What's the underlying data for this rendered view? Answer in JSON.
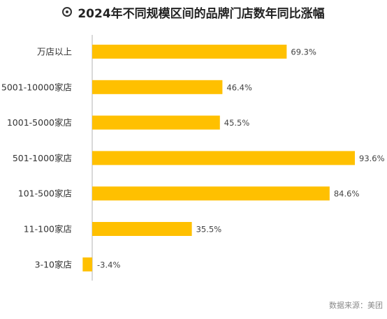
{
  "title": "2024年不同规模区间的品牌门店数年同比涨幅",
  "source": "数据来源：美团",
  "colors": {
    "bar": "#FFC000",
    "axis": "#d9d9d9",
    "label": "#333333",
    "value": "#444444"
  },
  "chart_data": {
    "type": "bar",
    "orientation": "horizontal",
    "title": "2024年不同规模区间的品牌门店数年同比涨幅",
    "categories": [
      "万店以上",
      "5001-10000家店",
      "1001-5000家店",
      "501-1000家店",
      "101-500家店",
      "11-100家店",
      "3-10家店"
    ],
    "values": [
      69.3,
      46.4,
      45.5,
      93.6,
      84.6,
      35.5,
      -3.4
    ],
    "value_labels": [
      "69.3%",
      "46.4%",
      "45.5%",
      "93.6%",
      "84.6%",
      "35.5%",
      "-3.4%"
    ],
    "unit": "%",
    "xlim": [
      -3.4,
      93.6
    ],
    "grid": false,
    "legend": "none"
  }
}
